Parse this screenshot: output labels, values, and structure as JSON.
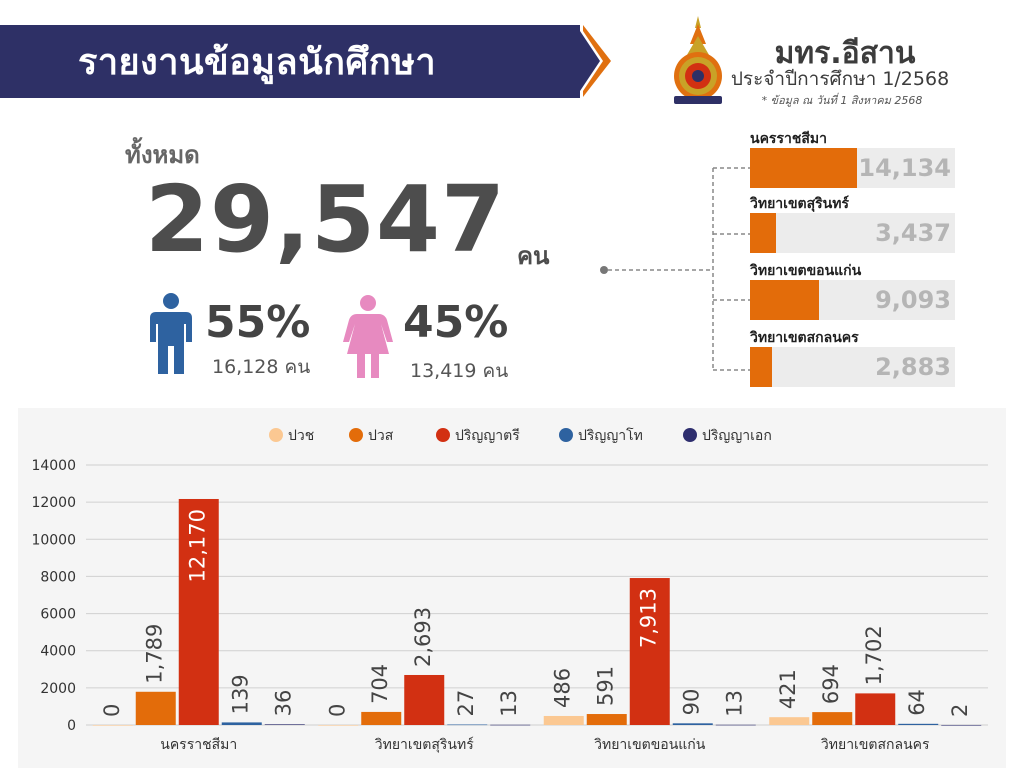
{
  "header": {
    "title": "รายงานข้อมูลนักศึกษา",
    "institution": "มทร.อีสาน",
    "academic_year": "ประจำปีการศึกษา 1/2568",
    "note": "* ข้อมูล ณ วันที่ 1 สิงหาคม 2568"
  },
  "summary": {
    "total_label": "ทั้งหมด",
    "total_value": "29,547",
    "unit": "คน",
    "male": {
      "percent": "55%",
      "count": "16,128 คน"
    },
    "female": {
      "percent": "45%",
      "count": "13,419 คน"
    }
  },
  "campuses": [
    {
      "name": "นครราชสีมา",
      "value": "14,134",
      "number": 14134
    },
    {
      "name": "วิทยาเขตสุรินทร์",
      "value": "3,437",
      "number": 3437
    },
    {
      "name": "วิทยาเขตขอนแก่น",
      "value": "9,093",
      "number": 9093
    },
    {
      "name": "วิทยาเขตสกลนคร",
      "value": "2,883",
      "number": 2883
    }
  ],
  "colors": {
    "navy": "#2e3066",
    "orange": "#e36c0a",
    "male": "#2e62a0",
    "female": "#e78ac0"
  },
  "chart_data": {
    "type": "bar",
    "categories": [
      "นครราชสีมา",
      "วิทยาเขตสุรินทร์",
      "วิทยาเขตขอนแก่น",
      "วิทยาเขตสกลนคร"
    ],
    "series": [
      {
        "name": "ปวช",
        "color": "#fbc892",
        "values": [
          0,
          0,
          486,
          421
        ],
        "labels": [
          "0",
          "0",
          "486",
          "421"
        ]
      },
      {
        "name": "ปวส",
        "color": "#e36c0a",
        "values": [
          1789,
          704,
          591,
          694
        ],
        "labels": [
          "1,789",
          "704",
          "591",
          "694"
        ]
      },
      {
        "name": "ปริญญาตรี",
        "color": "#d23012",
        "values": [
          12170,
          2693,
          7913,
          1702
        ],
        "labels": [
          "12,170",
          "2,693",
          "7,913",
          "1,702"
        ]
      },
      {
        "name": "ปริญญาโท",
        "color": "#2e62a0",
        "values": [
          139,
          27,
          90,
          64
        ],
        "labels": [
          "139",
          "27",
          "90",
          "64"
        ]
      },
      {
        "name": "ปริญญาเอก",
        "color": "#2e2e6e",
        "values": [
          36,
          13,
          13,
          2
        ],
        "labels": [
          "36",
          "13",
          "13",
          "2"
        ]
      }
    ],
    "yticks": [
      "0",
      "2000",
      "4000",
      "6000",
      "8000",
      "10000",
      "12000",
      "14000"
    ],
    "ylim": [
      0,
      14000
    ],
    "legend": "top-center",
    "grid": true
  }
}
